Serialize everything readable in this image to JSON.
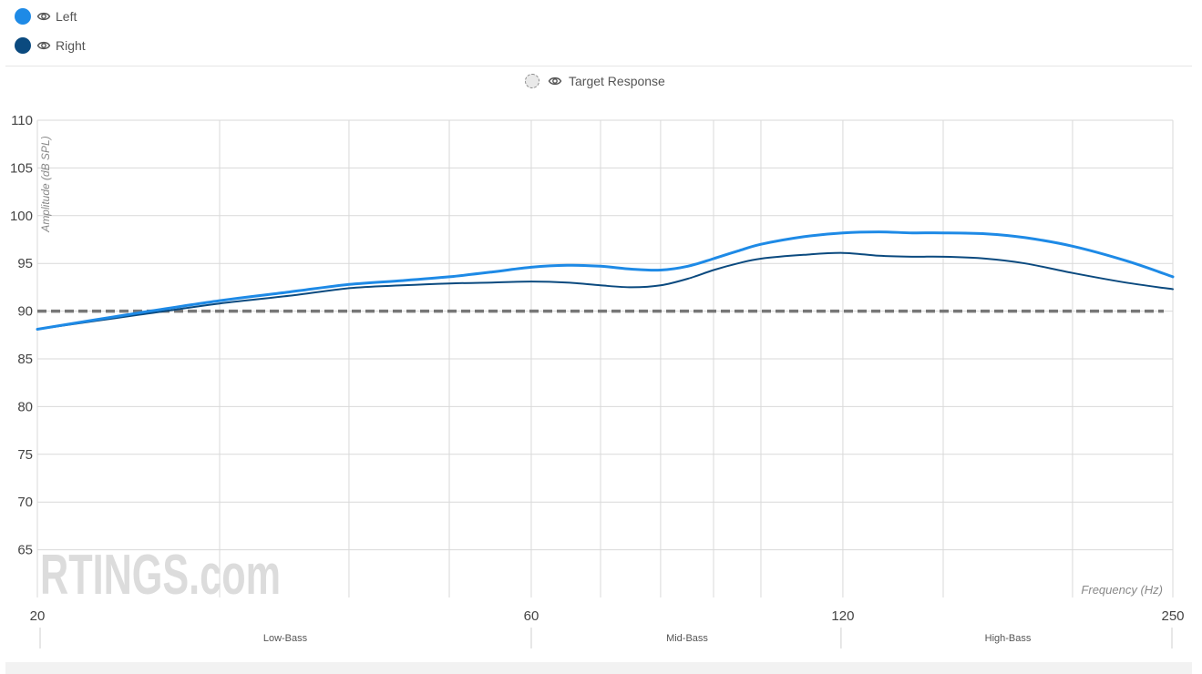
{
  "legend": {
    "items": [
      {
        "label": "Left",
        "color": "#1e8ae6",
        "icon": "eye-icon"
      },
      {
        "label": "Right",
        "color": "#0b4a7f",
        "icon": "eye-icon"
      }
    ],
    "target": {
      "label": "Target Response",
      "icon": "eye-icon"
    }
  },
  "watermark": "RTINGS.com",
  "chart_data": {
    "type": "line",
    "x_scale": "log",
    "xlim": [
      20,
      250
    ],
    "ylim": [
      60,
      110
    ],
    "xlabel": "Frequency (Hz)",
    "ylabel": "Amplitude (dB SPL)",
    "grid": true,
    "x_ticks": [
      20,
      60,
      120,
      250
    ],
    "x_gridlines": [
      20,
      30,
      40,
      50,
      60,
      70,
      80,
      90,
      100,
      120,
      150,
      200,
      250
    ],
    "y_ticks": [
      65,
      70,
      75,
      80,
      85,
      90,
      95,
      100,
      105,
      110
    ],
    "bands": [
      {
        "label": "Low-Bass",
        "from": 20,
        "to": 60
      },
      {
        "label": "Mid-Bass",
        "from": 60,
        "to": 120
      },
      {
        "label": "High-Bass",
        "from": 120,
        "to": 250
      }
    ],
    "series": [
      {
        "name": "Left",
        "color": "#1e8ae6",
        "x": [
          20,
          25,
          30,
          35,
          40,
          45,
          50,
          55,
          60,
          65,
          70,
          75,
          80,
          85,
          90,
          95,
          100,
          110,
          120,
          130,
          140,
          150,
          165,
          180,
          200,
          225,
          250
        ],
        "y": [
          88.1,
          89.8,
          91.1,
          92.0,
          92.8,
          93.2,
          93.6,
          94.1,
          94.6,
          94.8,
          94.7,
          94.4,
          94.3,
          94.7,
          95.5,
          96.3,
          97.0,
          97.8,
          98.2,
          98.3,
          98.2,
          98.2,
          98.1,
          97.7,
          96.8,
          95.3,
          93.6
        ]
      },
      {
        "name": "Right",
        "color": "#0b4a7f",
        "x": [
          20,
          25,
          30,
          35,
          40,
          45,
          50,
          55,
          60,
          65,
          70,
          75,
          80,
          85,
          90,
          95,
          100,
          110,
          120,
          130,
          140,
          150,
          165,
          180,
          200,
          225,
          250
        ],
        "y": [
          88.1,
          89.6,
          90.8,
          91.6,
          92.4,
          92.7,
          92.9,
          93.0,
          93.1,
          93.0,
          92.7,
          92.5,
          92.7,
          93.4,
          94.3,
          95.0,
          95.5,
          95.9,
          96.1,
          95.8,
          95.7,
          95.7,
          95.5,
          95.0,
          94.0,
          93.0,
          92.3
        ]
      }
    ],
    "target": {
      "name": "Target Response",
      "y": 90,
      "color": "#777777"
    }
  }
}
